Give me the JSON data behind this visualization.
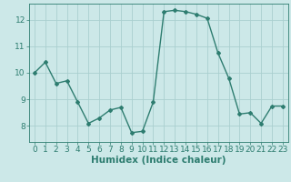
{
  "x": [
    0,
    1,
    2,
    3,
    4,
    5,
    6,
    7,
    8,
    9,
    10,
    11,
    12,
    13,
    14,
    15,
    16,
    17,
    18,
    19,
    20,
    21,
    22,
    23
  ],
  "y": [
    10.0,
    10.4,
    9.6,
    9.7,
    8.9,
    8.1,
    8.3,
    8.6,
    8.7,
    7.75,
    7.8,
    8.9,
    12.3,
    12.35,
    12.3,
    12.2,
    12.05,
    10.75,
    9.8,
    8.45,
    8.5,
    8.1,
    8.75,
    8.75
  ],
  "line_color": "#2e7d70",
  "marker": "D",
  "marker_size": 2.0,
  "bg_color": "#cce8e8",
  "grid_color": "#aacfcf",
  "xlabel": "Humidex (Indice chaleur)",
  "xlim": [
    -0.5,
    23.5
  ],
  "ylim": [
    7.4,
    12.6
  ],
  "xticks": [
    0,
    1,
    2,
    3,
    4,
    5,
    6,
    7,
    8,
    9,
    10,
    11,
    12,
    13,
    14,
    15,
    16,
    17,
    18,
    19,
    20,
    21,
    22,
    23
  ],
  "yticks": [
    8,
    9,
    10,
    11,
    12
  ],
  "tick_fontsize": 6.5,
  "xlabel_fontsize": 7.5,
  "line_width": 1.0
}
